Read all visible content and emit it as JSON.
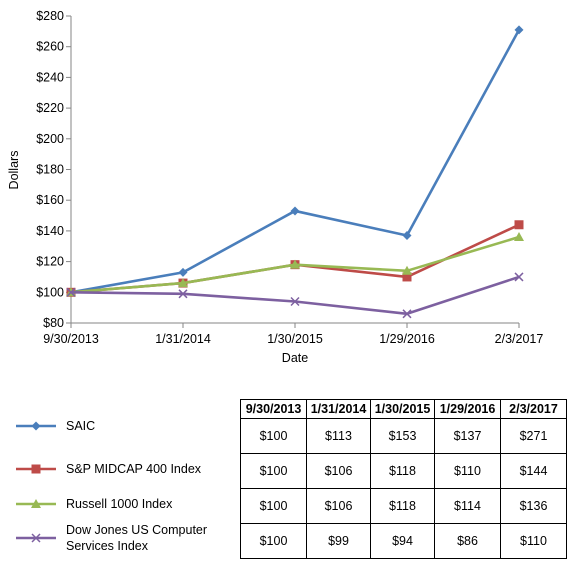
{
  "chart_data": {
    "type": "line",
    "xlabel": "Date",
    "ylabel": "Dollars",
    "categories": [
      "9/30/2013",
      "1/31/2014",
      "1/30/2015",
      "1/29/2016",
      "2/3/2017"
    ],
    "ylim": [
      80,
      280
    ],
    "yticks": [
      80,
      100,
      120,
      140,
      160,
      180,
      200,
      220,
      240,
      260,
      280
    ],
    "ytick_labels": [
      "$80",
      "$100",
      "$120",
      "$140",
      "$160",
      "$180",
      "$200",
      "$220",
      "$240",
      "$260",
      "$280"
    ],
    "grid": false,
    "legend": "bottom-left",
    "series": [
      {
        "name": "SAIC",
        "values": [
          100,
          113,
          153,
          137,
          271
        ],
        "color": "#4A7EBB",
        "marker": "diamond"
      },
      {
        "name": "S&P MIDCAP 400 Index",
        "values": [
          100,
          106,
          118,
          110,
          144
        ],
        "color": "#BE4B48",
        "marker": "square"
      },
      {
        "name": "Russell 1000 Index",
        "values": [
          100,
          106,
          118,
          114,
          136
        ],
        "color": "#98B954",
        "marker": "triangle"
      },
      {
        "name": "Dow Jones US Computer Services Index",
        "values": [
          100,
          99,
          94,
          86,
          110
        ],
        "color": "#7D60A0",
        "marker": "x"
      }
    ]
  },
  "table": {
    "headers": [
      "9/30/2013",
      "1/31/2014",
      "1/30/2015",
      "1/29/2016",
      "2/3/2017"
    ],
    "rows": [
      [
        "$100",
        "$113",
        "$153",
        "$137",
        "$271"
      ],
      [
        "$100",
        "$106",
        "$118",
        "$110",
        "$144"
      ],
      [
        "$100",
        "$106",
        "$118",
        "$114",
        "$136"
      ],
      [
        "$100",
        "$99",
        "$94",
        "$86",
        "$110"
      ]
    ]
  },
  "legend": {
    "items": [
      {
        "label": "SAIC",
        "color": "#4A7EBB",
        "marker": "diamond"
      },
      {
        "label": "S&P MIDCAP 400 Index",
        "color": "#BE4B48",
        "marker": "square"
      },
      {
        "label": "Russell 1000 Index",
        "color": "#98B954",
        "marker": "triangle"
      },
      {
        "label_line1": "Dow Jones US Computer",
        "label_line2": "Services Index",
        "color": "#7D60A0",
        "marker": "x"
      }
    ]
  }
}
